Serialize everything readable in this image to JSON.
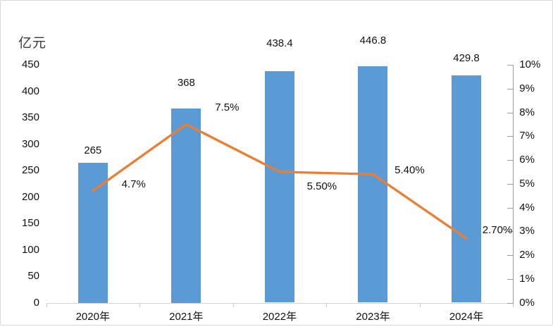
{
  "chart_data": {
    "type": "bar",
    "title": "",
    "categories": [
      "2020年",
      "2021年",
      "2022年",
      "2023年",
      "2024年"
    ],
    "series": [
      {
        "name": "value-bars",
        "type": "bar",
        "values": [
          265,
          368,
          438.4,
          446.8,
          429.8
        ],
        "labels": [
          "265",
          "368",
          "438.4",
          "446.8",
          "429.8"
        ],
        "color": "#5B9BD5",
        "axis": "left"
      },
      {
        "name": "growth-rate-line",
        "type": "line",
        "values": [
          4.7,
          7.5,
          5.5,
          5.4,
          2.7
        ],
        "labels": [
          "4.7%",
          "7.5%",
          "5.50%",
          "5.40%",
          "2.70%"
        ],
        "color": "#ED7D31",
        "axis": "right"
      }
    ],
    "left_axis": {
      "title": "亿元",
      "min": 0,
      "max": 450,
      "step": 50,
      "ticks": [
        "450",
        "400",
        "350",
        "300",
        "250",
        "200",
        "150",
        "100",
        "50",
        "0"
      ]
    },
    "right_axis": {
      "min": 0,
      "max": 10,
      "step": 1,
      "ticks": [
        "10%",
        "9%",
        "8%",
        "7%",
        "6%",
        "5%",
        "4%",
        "3%",
        "2%",
        "1%",
        "0%"
      ]
    },
    "grid": false,
    "legend": "none"
  },
  "colors": {
    "bar": "#5B9BD5",
    "line": "#ED7D31",
    "right_axis_line": "#9b9b9b",
    "x_axis_line": "#d4d4d4",
    "frame_border": "#d9d9d9",
    "text": "#111111"
  }
}
